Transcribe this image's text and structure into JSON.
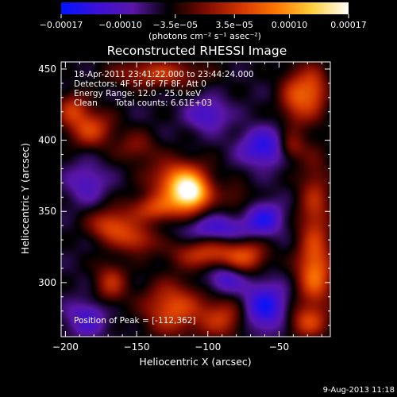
{
  "chart_data": {
    "type": "heatmap",
    "title": "Reconstructed RHESSI Image",
    "xlabel": "Heliocentric X (arcsec)",
    "ylabel": "Heliocentric Y (arcsec)",
    "xlim": [
      -203,
      -14
    ],
    "ylim": [
      262,
      455
    ],
    "x_ticks": [
      -200,
      -150,
      -100,
      -50
    ],
    "x_tick_labels": [
      "−200",
      "−150",
      "−100",
      "−50"
    ],
    "y_ticks": [
      300,
      350,
      400,
      450
    ],
    "y_tick_labels": [
      "300",
      "350",
      "400",
      "450"
    ],
    "colorbar": {
      "min": -0.00017,
      "max": 0.00017,
      "ticks": [
        -0.00017,
        -0.0001,
        -3.5e-05,
        3.5e-05,
        0.0001,
        0.00017
      ],
      "tick_labels": [
        "−0.00017",
        "−0.00010",
        "−3.5e−05",
        "3.5e−05",
        "0.00010",
        "0.00017"
      ],
      "units": "(photons cm⁻² s⁻¹ asec⁻²)",
      "colors": [
        "#0014ff",
        "#3c10d8",
        "#5a16a8",
        "#000000",
        "#7a0a00",
        "#d23500",
        "#ff7800",
        "#ffd040",
        "#ffffff"
      ]
    },
    "annotations": {
      "time_range": "18-Apr-2011 23:41:22.000 to 23:44:24.000",
      "detectors": "Detectors: 4F 5F 6F 7F 8F, Att 0",
      "energy_range": "Energy Range: 12.0 - 25.0 keV",
      "method": "Clean",
      "total_counts": "Total counts: 6.61E+03",
      "peak": "Position of Peak = [-112,362]"
    },
    "peak_position": [
      -112,
      362
    ],
    "sources": [
      {
        "x": -112,
        "y": 362,
        "amp": 1.0,
        "sx": 9,
        "sy": 8
      },
      {
        "x": -120,
        "y": 372,
        "amp": 0.75,
        "sx": 14,
        "sy": 10
      },
      {
        "x": -135,
        "y": 352,
        "amp": 0.55,
        "sx": 14,
        "sy": 7
      },
      {
        "x": -168,
        "y": 340,
        "amp": 0.58,
        "sx": 11,
        "sy": 8
      },
      {
        "x": -150,
        "y": 330,
        "amp": 0.45,
        "sx": 10,
        "sy": 7
      },
      {
        "x": -182,
        "y": 408,
        "amp": 0.55,
        "sx": 11,
        "sy": 9
      },
      {
        "x": -195,
        "y": 422,
        "amp": 0.45,
        "sx": 8,
        "sy": 8
      },
      {
        "x": -135,
        "y": 447,
        "amp": 0.5,
        "sx": 22,
        "sy": 7
      },
      {
        "x": -38,
        "y": 430,
        "amp": 0.55,
        "sx": 8,
        "sy": 14
      },
      {
        "x": -25,
        "y": 435,
        "amp": 0.5,
        "sx": 7,
        "sy": 12
      },
      {
        "x": -42,
        "y": 395,
        "amp": 0.42,
        "sx": 7,
        "sy": 7
      },
      {
        "x": -25,
        "y": 350,
        "amp": 0.45,
        "sx": 8,
        "sy": 28
      },
      {
        "x": -25,
        "y": 305,
        "amp": 0.62,
        "sx": 9,
        "sy": 16
      },
      {
        "x": -100,
        "y": 320,
        "amp": 0.52,
        "sx": 18,
        "sy": 7
      },
      {
        "x": -72,
        "y": 318,
        "amp": 0.45,
        "sx": 10,
        "sy": 8
      },
      {
        "x": -168,
        "y": 300,
        "amp": 0.45,
        "sx": 8,
        "sy": 10
      },
      {
        "x": -125,
        "y": 282,
        "amp": 0.62,
        "sx": 14,
        "sy": 13
      },
      {
        "x": -90,
        "y": 275,
        "amp": 0.48,
        "sx": 12,
        "sy": 10
      },
      {
        "x": -30,
        "y": 272,
        "amp": 0.5,
        "sx": 10,
        "sy": 8
      },
      {
        "x": -150,
        "y": 395,
        "amp": 0.3,
        "sx": 10,
        "sy": 8
      },
      {
        "x": -80,
        "y": 360,
        "amp": 0.22,
        "sx": 8,
        "sy": 7
      },
      {
        "x": -60,
        "y": 395,
        "amp": -0.55,
        "sx": 12,
        "sy": 9
      },
      {
        "x": -92,
        "y": 338,
        "amp": -0.4,
        "sx": 16,
        "sy": 6
      },
      {
        "x": -60,
        "y": 345,
        "amp": -0.5,
        "sx": 9,
        "sy": 8
      },
      {
        "x": -60,
        "y": 283,
        "amp": -0.6,
        "sx": 11,
        "sy": 12
      },
      {
        "x": -88,
        "y": 302,
        "amp": -0.4,
        "sx": 9,
        "sy": 7
      },
      {
        "x": -185,
        "y": 275,
        "amp": -0.38,
        "sx": 10,
        "sy": 9
      },
      {
        "x": -100,
        "y": 418,
        "amp": -0.4,
        "sx": 10,
        "sy": 8
      },
      {
        "x": -185,
        "y": 370,
        "amp": -0.32,
        "sx": 10,
        "sy": 10
      }
    ]
  },
  "footer": {
    "timestamp": "9-Aug-2013 11:18"
  }
}
